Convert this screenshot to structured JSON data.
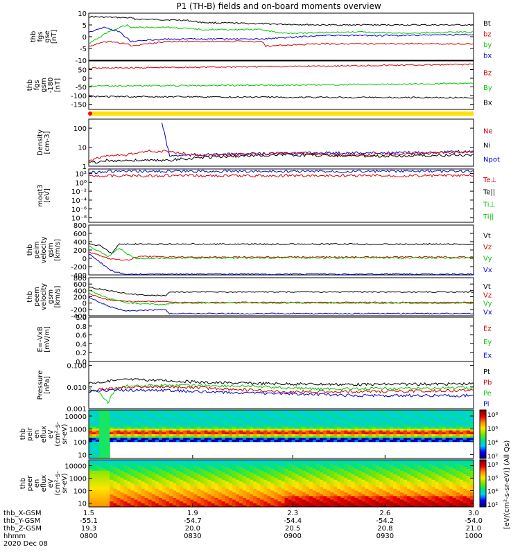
{
  "chart_data": {
    "type": "line",
    "title": "P1 (TH-B) fields and on-board moments overview",
    "panels": [
      {
        "id": "fgs-gse",
        "ylabel": [
          "thb",
          "fgs",
          "gse",
          "[nT]"
        ],
        "yticks": [
          10,
          5,
          0,
          -5,
          -10
        ],
        "ylim": [
          -10,
          10
        ],
        "legend": [
          {
            "label": "Bt",
            "color": "#000000"
          },
          {
            "label": "bz",
            "color": "#d40000"
          },
          {
            "label": "by",
            "color": "#00c800"
          },
          {
            "label": "bx",
            "color": "#0000d0"
          }
        ],
        "series": [
          {
            "name": "Bt",
            "color": "#000000",
            "x": [
              0,
              0.11,
              0.12,
              0.25,
              0.3,
              0.45,
              0.6,
              0.8,
              1.0
            ],
            "y": [
              8.5,
              8,
              7.5,
              7,
              6,
              5.5,
              5,
              5,
              5
            ]
          },
          {
            "name": "bz",
            "color": "#d40000",
            "x": [
              0,
              0.05,
              0.1,
              0.11,
              0.2,
              0.3,
              0.45,
              0.46,
              0.6,
              0.8,
              1.0
            ],
            "y": [
              -4,
              -2,
              -3,
              -4,
              -2,
              -2,
              -2,
              -4,
              -3,
              -3,
              -3
            ]
          },
          {
            "name": "by",
            "color": "#00c800",
            "x": [
              0,
              0.05,
              0.1,
              0.11,
              0.2,
              0.3,
              0.45,
              0.5,
              0.7,
              0.8,
              1.0
            ],
            "y": [
              -3,
              2,
              5,
              4,
              4,
              3,
              3,
              1.5,
              2,
              1.5,
              2
            ]
          },
          {
            "name": "bx",
            "color": "#0000d0",
            "x": [
              0,
              0.04,
              0.08,
              0.11,
              0.2,
              0.3,
              0.45,
              0.6,
              0.8,
              1.0
            ],
            "y": [
              2,
              4,
              2,
              -2,
              -1,
              -1,
              -1,
              0.5,
              0.5,
              1
            ]
          }
        ]
      },
      {
        "id": "fgs-gsm",
        "ylabel": [
          "thb",
          "fgs",
          "gsm",
          "-180",
          "[nT]"
        ],
        "yticks": [
          50,
          0,
          -50,
          -100,
          -150
        ],
        "ylim": [
          -180,
          100
        ],
        "legend": [
          {
            "label": "Bz",
            "color": "#d40000"
          },
          {
            "label": "By",
            "color": "#00c800"
          },
          {
            "label": "Bx",
            "color": "#000000"
          }
        ],
        "series": [
          {
            "name": "Bz",
            "color": "#d40000",
            "x": [
              0,
              0.5,
              1.0
            ],
            "y": [
              58,
              68,
              80
            ]
          },
          {
            "name": "By",
            "color": "#00c800",
            "x": [
              0,
              0.5,
              1.0
            ],
            "y": [
              -45,
              -40,
              -30
            ]
          },
          {
            "name": "Bx",
            "color": "#000000",
            "x": [
              0,
              0.5,
              1.0
            ],
            "y": [
              -105,
              -110,
              -112
            ]
          }
        ]
      },
      {
        "id": "status-bar",
        "type": "bar",
        "color": "#ffe000",
        "marker_color": "#ff0000"
      },
      {
        "id": "density",
        "ylabel": [
          "Density",
          "[cm-3]"
        ],
        "ytick_labels": [
          "100",
          "10",
          "1"
        ],
        "yticks_log": [
          100,
          10,
          1
        ],
        "log": true,
        "ylim": [
          1,
          300
        ],
        "legend": [
          {
            "label": "Ne",
            "color": "#d40000"
          },
          {
            "label": "Ni",
            "color": "#000000"
          },
          {
            "label": "Npot",
            "color": "#0000d0"
          }
        ],
        "series": [
          {
            "name": "Npot",
            "color": "#0000d0",
            "x": [
              0.19,
              0.21,
              0.3,
              0.6,
              0.8,
              1.0
            ],
            "y": [
              200,
              3.5,
              4,
              5,
              5,
              6
            ]
          },
          {
            "name": "Ne",
            "color": "#d40000",
            "x": [
              0,
              0.04,
              0.1,
              0.15,
              0.2,
              0.3,
              0.5,
              0.7,
              0.85,
              1.0
            ],
            "y": [
              2,
              3.5,
              4,
              6,
              6,
              3.5,
              5,
              4,
              4.5,
              6
            ]
          },
          {
            "name": "Ni",
            "color": "#000000",
            "x": [
              0,
              0.05,
              0.1,
              0.2,
              0.3,
              0.5,
              0.7,
              0.85,
              1.0
            ],
            "y": [
              1.5,
              2,
              2,
              2,
              3,
              4,
              3.5,
              3.5,
              4
            ]
          }
        ]
      },
      {
        "id": "moms-t3",
        "ylabel": [
          "moqt3",
          "[eV]"
        ],
        "ytick_labels": [
          "10²",
          "10⁰",
          "10⁻²",
          "10⁻⁴",
          "10⁻⁶",
          "10⁻⁸"
        ],
        "yticks_log": [
          100,
          1,
          0.01,
          0.0001,
          1e-06,
          1e-08
        ],
        "log": true,
        "ylim": [
          1e-09,
          1000
        ],
        "legend": [
          {
            "label": "Te⊥",
            "color": "#d40000"
          },
          {
            "label": "Te||",
            "color": "#000000"
          },
          {
            "label": "Ti⊥",
            "color": "#00c800"
          },
          {
            "label": "Ti||",
            "color": "#00c800"
          }
        ],
        "series": [
          {
            "name": "Ti",
            "color": "#0000d0",
            "x": [
              0,
              0.05,
              1.0
            ],
            "y": [
              150,
              300,
              300
            ]
          },
          {
            "name": "Te",
            "color": "#d40000",
            "x": [
              0,
              1.0
            ],
            "y": [
              30,
              30
            ]
          }
        ]
      },
      {
        "id": "peim-velocity",
        "ylabel": [
          "thb",
          "peim",
          "velocity",
          "gsm",
          "[km/s]"
        ],
        "yticks": [
          800,
          600,
          400,
          200,
          0,
          -200,
          -400
        ],
        "ylim": [
          -400,
          800
        ],
        "legend": [
          {
            "label": "Vt",
            "color": "#000000"
          },
          {
            "label": "Vz",
            "color": "#d40000"
          },
          {
            "label": "Vy",
            "color": "#00c800"
          },
          {
            "label": "Vx",
            "color": "#0000d0"
          }
        ],
        "series": [
          {
            "name": "Vt",
            "color": "#000000",
            "x": [
              0,
              0.03,
              0.06,
              0.08,
              0.1,
              1.0
            ],
            "y": [
              350,
              300,
              120,
              350,
              340,
              340
            ]
          },
          {
            "name": "Vz",
            "color": "#d40000",
            "x": [
              0,
              0.05,
              0.1,
              0.13,
              0.2,
              1.0
            ],
            "y": [
              150,
              0,
              -50,
              50,
              30,
              30
            ]
          },
          {
            "name": "Vy",
            "color": "#00c800",
            "x": [
              0,
              0.05,
              0.08,
              0.1,
              0.12,
              0.2,
              1.0
            ],
            "y": [
              300,
              50,
              250,
              100,
              0,
              10,
              10
            ]
          },
          {
            "name": "Vx",
            "color": "#0000d0",
            "x": [
              0,
              0.03,
              0.06,
              0.09,
              0.1,
              0.12,
              1.0
            ],
            "y": [
              100,
              -100,
              -300,
              -380,
              -380,
              -380,
              -380
            ]
          }
        ]
      },
      {
        "id": "peem-velocity",
        "ylabel": [
          "thb",
          "peem",
          "velocity",
          "gsm",
          "[km/s]"
        ],
        "yticks": [
          800,
          600,
          400,
          200,
          0,
          -200,
          -400
        ],
        "ylim": [
          -400,
          800
        ],
        "legend": [
          {
            "label": "Vt",
            "color": "#000000"
          },
          {
            "label": "Vz",
            "color": "#d40000"
          },
          {
            "label": "Vy",
            "color": "#00c800"
          },
          {
            "label": "Vx",
            "color": "#0000d0"
          }
        ],
        "series": [
          {
            "name": "Vt",
            "color": "#000000",
            "x": [
              0,
              0.05,
              0.1,
              0.15,
              0.2,
              0.21,
              0.5,
              1.0
            ],
            "y": [
              500,
              400,
              300,
              250,
              230,
              350,
              350,
              350
            ]
          },
          {
            "name": "Vz",
            "color": "#d40000",
            "x": [
              0,
              0.05,
              0.1,
              0.2,
              0.21,
              0.5,
              1.0
            ],
            "y": [
              300,
              100,
              50,
              50,
              20,
              20,
              20
            ]
          },
          {
            "name": "Vy",
            "color": "#00c800",
            "x": [
              0,
              0.05,
              0.1,
              0.2,
              0.21,
              0.5,
              1.0
            ],
            "y": [
              400,
              150,
              0,
              -50,
              0,
              0,
              0
            ]
          },
          {
            "name": "Vx",
            "color": "#0000d0",
            "x": [
              0,
              0.05,
              0.1,
              0.2,
              0.21,
              0.5,
              1.0
            ],
            "y": [
              200,
              -100,
              -250,
              -200,
              -330,
              -330,
              -330
            ]
          }
        ]
      },
      {
        "id": "efield",
        "ylabel": [
          "E=-VxB",
          "[mV/m]"
        ],
        "yticks": [
          1.0,
          0.8,
          0.6,
          0.4,
          0.2,
          0.0
        ],
        "ytick_labels": [
          "1.0",
          "0.8",
          "0.6",
          "0.4",
          "0.2",
          "0.0"
        ],
        "ylim": [
          0,
          1.0
        ],
        "legend": [
          {
            "label": "Ez",
            "color": "#d40000"
          },
          {
            "label": "Ey",
            "color": "#00c800"
          },
          {
            "label": "Ex",
            "color": "#0000d0"
          }
        ],
        "series": []
      },
      {
        "id": "pressure",
        "ylabel": [
          "Pressure",
          "[nPa]"
        ],
        "ytick_labels": [
          "0.100",
          "0.010",
          "0.001"
        ],
        "yticks_log": [
          0.1,
          0.01,
          0.001
        ],
        "log": true,
        "ylim": [
          0.001,
          0.15
        ],
        "legend": [
          {
            "label": "Pt",
            "color": "#000000"
          },
          {
            "label": "Pb",
            "color": "#d40000"
          },
          {
            "label": "Pe",
            "color": "#00c800"
          },
          {
            "label": "Pi",
            "color": "#0000d0"
          }
        ],
        "series": [
          {
            "name": "Pt",
            "color": "#000000",
            "x": [
              0,
              0.05,
              0.1,
              0.2,
              0.3,
              0.5,
              0.7,
              1.0
            ],
            "y": [
              0.015,
              0.018,
              0.022,
              0.02,
              0.016,
              0.014,
              0.013,
              0.014
            ]
          },
          {
            "name": "Pe",
            "color": "#00c800",
            "x": [
              0,
              0.03,
              0.05,
              0.07,
              0.1,
              0.2,
              0.4,
              0.6,
              1.0
            ],
            "y": [
              0.008,
              0.005,
              0.002,
              0.008,
              0.011,
              0.012,
              0.011,
              0.008,
              0.009
            ]
          },
          {
            "name": "Pb",
            "color": "#d40000",
            "x": [
              0,
              0.05,
              0.1,
              0.2,
              0.3,
              0.5,
              0.7,
              1.0
            ],
            "y": [
              0.007,
              0.008,
              0.01,
              0.01,
              0.009,
              0.006,
              0.006,
              0.007
            ]
          },
          {
            "name": "Pi",
            "color": "#0000d0",
            "x": [
              0,
              0.05,
              0.1,
              0.2,
              0.3,
              0.5,
              0.7,
              1.0
            ],
            "y": [
              0.006,
              0.007,
              0.007,
              0.007,
              0.006,
              0.005,
              0.004,
              0.004
            ]
          }
        ]
      },
      {
        "id": "peir-spectrogram",
        "type": "heatmap",
        "ylabel": [
          "thb",
          "peir",
          "en",
          "eflux",
          "eV",
          "(cm²-s-",
          "sr-eV)"
        ],
        "ytick_labels": [
          "10000",
          "1000",
          "100",
          "10"
        ],
        "yticks_log": [
          10000,
          1000,
          100,
          10
        ],
        "log": true,
        "ylim": [
          5,
          30000
        ]
      },
      {
        "id": "peer-spectrogram",
        "type": "heatmap",
        "ylabel": [
          "thb",
          "peer",
          "en",
          "eflux",
          "eV",
          "(cm²-s-",
          "sr-eV)"
        ],
        "ytick_labels": [
          "10000",
          "1000",
          "100",
          "10"
        ],
        "yticks_log": [
          10000,
          1000,
          100,
          10
        ],
        "log": true,
        "ylim": [
          5,
          30000
        ]
      }
    ],
    "colorbar": {
      "label": "[eV/(cm²-s-sr-eV)] (All Qs)",
      "ticks": [
        "10⁸",
        "10⁶",
        "10⁴",
        "10²"
      ]
    },
    "xaxis": {
      "tick_values": [
        "1.5",
        "1.9",
        "2.3",
        "2.6",
        "3.0"
      ],
      "tick_fractions": [
        0.0,
        0.27,
        0.53,
        0.77,
        1.0
      ],
      "rows": [
        {
          "label": "thb_X-GSM",
          "values": [
            "1.5",
            "1.9",
            "2.3",
            "2.6",
            "3.0"
          ]
        },
        {
          "label": "thb_Y-GSM",
          "values": [
            "-55.1",
            "-54.7",
            "-54.4",
            "-54.2",
            "-54.0"
          ]
        },
        {
          "label": "thb_Z-GSM",
          "values": [
            "19.3",
            "20.0",
            "20.5",
            "20.8",
            "21.0"
          ]
        },
        {
          "label": "hhmm",
          "values": [
            "0800",
            "0830",
            "0900",
            "0930",
            "1000"
          ]
        }
      ],
      "date": "2020 Dec 08"
    }
  }
}
